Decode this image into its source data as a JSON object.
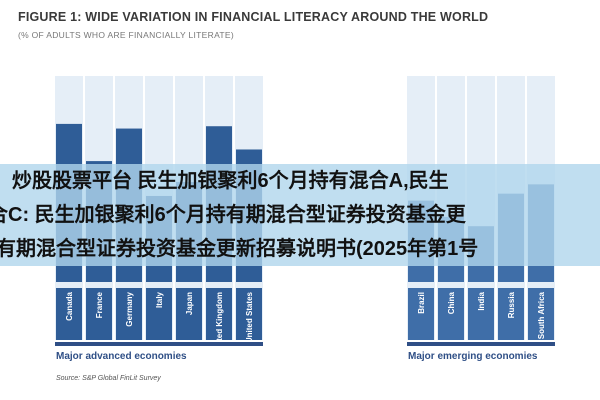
{
  "figure": {
    "title": "FIGURE 1: WIDE VARIATION IN FINANCIAL LITERACY AROUND THE WORLD",
    "subtitle": "(% OF ADULTS WHO ARE FINANCIALLY LITERATE)",
    "source": "Source: S&P Global FinLit Survey"
  },
  "overlay": {
    "line1": "炒股股票平台 民生加银聚利6个月持有混合A,民生",
    "line2": "合C: 民生加银聚利6个月持有期混合型证券投资基金更",
    "line3": "有期混合型证券投资基金更新招募说明书(2025年第1号"
  },
  "colors": {
    "advanced_bar": "#2f5d97",
    "emerging_bar": "#3f6ea8",
    "background_column": "#e5eef7",
    "label_text": "#2f4f86"
  },
  "chart_data": {
    "type": "bar",
    "title": "FIGURE 1: WIDE VARIATION IN FINANCIAL LITERACY AROUND THE WORLD",
    "subtitle": "(% OF ADULTS WHO ARE FINANCIALLY LITERATE)",
    "ylim": [
      0,
      80
    ],
    "grid": false,
    "groups": [
      {
        "name": "Major advanced economies",
        "categories": [
          "Canada",
          "France",
          "Germany",
          "Italy",
          "Japan",
          "United Kingdom",
          "United States"
        ],
        "values": [
          68,
          52,
          66,
          37,
          43,
          67,
          57
        ]
      },
      {
        "name": "Major emerging economies",
        "categories": [
          "Brazil",
          "China",
          "India",
          "Russia",
          "South Africa"
        ],
        "values": [
          35,
          28,
          24,
          38,
          42
        ]
      }
    ]
  }
}
